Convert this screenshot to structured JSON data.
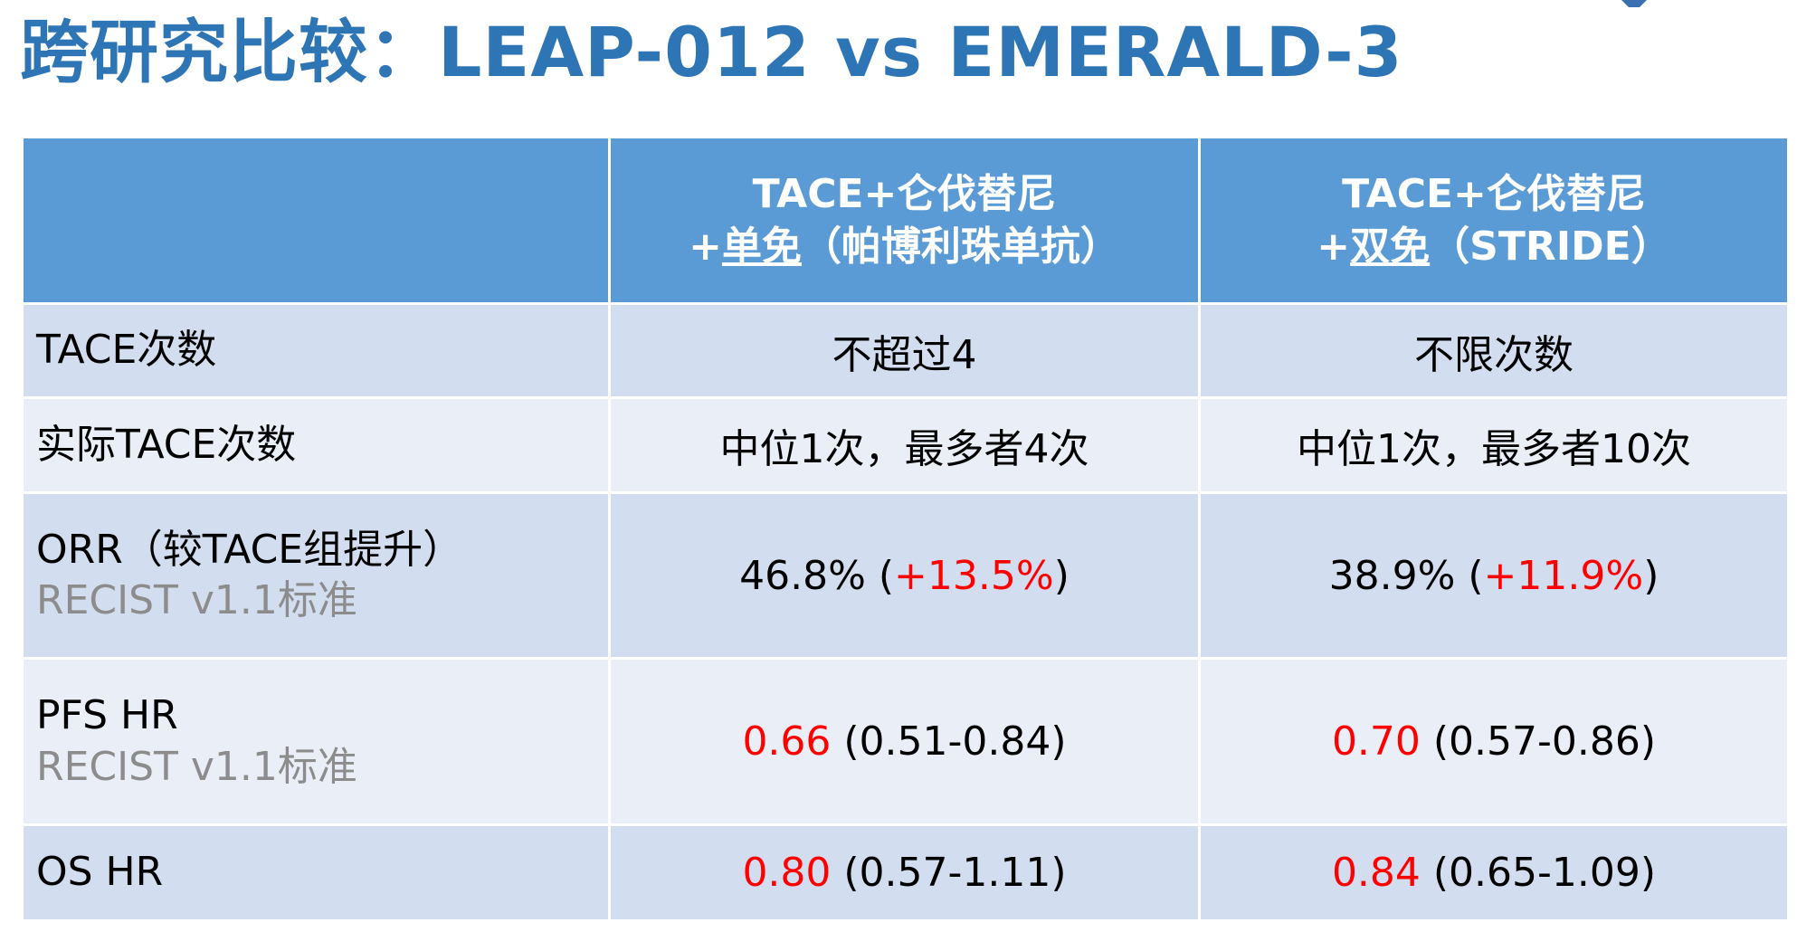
{
  "title": "跨研究比较：LEAP-012 vs EMERALD-3",
  "colors": {
    "title": "#2E75B6",
    "header_bg": "#5B9BD5",
    "row_dark": "#D2DEEF",
    "row_light": "#EAEFF7",
    "highlight": "#FF0000",
    "sublabel": "#8C8C8C"
  },
  "table": {
    "header": {
      "col1": {
        "line1": "TACE+仑伐替尼",
        "line2_prefix": "+",
        "line2_underlined": "单免",
        "line2_suffix": "（帕博利珠单抗）"
      },
      "col2": {
        "line1": "TACE+仑伐替尼",
        "line2_prefix": "+",
        "line2_underlined": "双免",
        "line2_suffix": "（STRIDE）"
      }
    },
    "rows": [
      {
        "label": "TACE次数",
        "col1": "不超过4",
        "col2": "不限次数"
      },
      {
        "label": "实际TACE次数",
        "col1": "中位1次，最多者4次",
        "col2": "中位1次，最多者10次"
      },
      {
        "label": "ORR（较TACE组提升）",
        "sublabel": "RECIST v1.1标准",
        "col1": {
          "pre": "46.8% (",
          "red": "+13.5%",
          "post": ")"
        },
        "col2": {
          "pre": "38.9% (",
          "red": "+11.9%",
          "post": ")"
        }
      },
      {
        "label": "PFS HR",
        "sublabel": "RECIST v1.1标准",
        "col1": {
          "red": "0.66",
          "post": " (0.51-0.84)"
        },
        "col2": {
          "red": "0.70",
          "post": " (0.57-0.86)"
        }
      },
      {
        "label": "OS HR",
        "col1": {
          "red": "0.80",
          "post": " (0.57-1.11)"
        },
        "col2": {
          "red": "0.84",
          "post": " (0.65-1.09)"
        }
      }
    ]
  }
}
